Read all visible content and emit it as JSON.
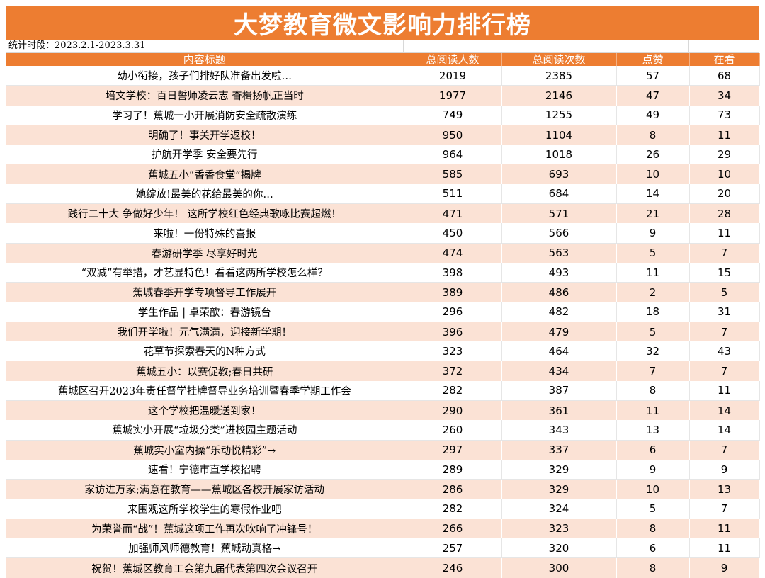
{
  "title": "大梦教育微文影响力排行榜",
  "period": "统计时段：2023.2.1-2023.3.31",
  "headers": [
    "内容标题",
    "总阅读人数",
    "总阅读次数",
    "点赞",
    "在看"
  ],
  "rows": [
    {
      "title": "幼小衔接，孩子们排好队准备出发啦…",
      "readers": "2019",
      "reads": "2385",
      "likes": "57",
      "watching": "68"
    },
    {
      "title": "培文学校：百日誓师凌云志 奋楫扬帆正当时",
      "readers": "1977",
      "reads": "2146",
      "likes": "47",
      "watching": "34"
    },
    {
      "title": "学习了！蕉城一小开展消防安全疏散演练",
      "readers": "749",
      "reads": "1255",
      "likes": "49",
      "watching": "73"
    },
    {
      "title": "明确了！事关开学返校！",
      "readers": "950",
      "reads": "1104",
      "likes": "8",
      "watching": "11"
    },
    {
      "title": "护航开学季 安全要先行",
      "readers": "964",
      "reads": "1018",
      "likes": "26",
      "watching": "29"
    },
    {
      "title": "蕉城五小“香香食堂”揭牌",
      "readers": "585",
      "reads": "693",
      "likes": "10",
      "watching": "10"
    },
    {
      "title": "她绽放!最美的花给最美的你…",
      "readers": "511",
      "reads": "684",
      "likes": "14",
      "watching": "20"
    },
    {
      "title": "践行二十大 争做好少年！ 这所学校红色经典歌咏比赛超燃！",
      "readers": "471",
      "reads": "571",
      "likes": "21",
      "watching": "28"
    },
    {
      "title": "来啦！一份特殊的喜报",
      "readers": "450",
      "reads": "566",
      "likes": "9",
      "watching": "11"
    },
    {
      "title": "春游研学季 尽享好时光",
      "readers": "474",
      "reads": "563",
      "likes": "5",
      "watching": "7"
    },
    {
      "title": "“双减”有举措，才艺显特色！看看这两所学校怎么样？",
      "readers": "398",
      "reads": "493",
      "likes": "11",
      "watching": "15"
    },
    {
      "title": "蕉城春季开学专项督导工作展开",
      "readers": "389",
      "reads": "486",
      "likes": "2",
      "watching": "5"
    },
    {
      "title": "学生作品 | 卓荣歆：春游镜台",
      "readers": "296",
      "reads": "482",
      "likes": "18",
      "watching": "31"
    },
    {
      "title": "我们开学啦！元气满满，迎接新学期！",
      "readers": "396",
      "reads": "479",
      "likes": "5",
      "watching": "7"
    },
    {
      "title": "花草节探索春天的N种方式",
      "readers": "323",
      "reads": "464",
      "likes": "32",
      "watching": "43"
    },
    {
      "title": "蕉城五小：以赛促教;春日共研",
      "readers": "372",
      "reads": "434",
      "likes": "7",
      "watching": "7"
    },
    {
      "title": "蕉城区召开2023年责任督学挂牌督导业务培训暨春季学期工作会",
      "readers": "282",
      "reads": "387",
      "likes": "8",
      "watching": "11"
    },
    {
      "title": "这个学校把温暖送到家！",
      "readers": "290",
      "reads": "361",
      "likes": "11",
      "watching": "14"
    },
    {
      "title": "蕉城实小开展“垃圾分类”进校园主题活动",
      "readers": "260",
      "reads": "343",
      "likes": "13",
      "watching": "14"
    },
    {
      "title": "蕉城实小室内操“乐动悦精彩”→",
      "readers": "297",
      "reads": "337",
      "likes": "6",
      "watching": "7"
    },
    {
      "title": "速看！宁德市直学校招聘",
      "readers": "289",
      "reads": "329",
      "likes": "9",
      "watching": "9"
    },
    {
      "title": "家访进万家;满意在教育——蕉城区各校开展家访活动",
      "readers": "286",
      "reads": "329",
      "likes": "10",
      "watching": "13"
    },
    {
      "title": "来围观这所学校学生的寒假作业吧",
      "readers": "282",
      "reads": "324",
      "likes": "5",
      "watching": "7"
    },
    {
      "title": "为荣誉而“战”！蕉城这项工作再次吹响了冲锋号！",
      "readers": "266",
      "reads": "323",
      "likes": "8",
      "watching": "11"
    },
    {
      "title": "加强师风师德教育！蕉城动真格→",
      "readers": "257",
      "reads": "320",
      "likes": "6",
      "watching": "11"
    },
    {
      "title": "祝贺！蕉城区教育工会第九届代表第四次会议召开",
      "readers": "246",
      "reads": "300",
      "likes": "8",
      "watching": "9"
    }
  ]
}
